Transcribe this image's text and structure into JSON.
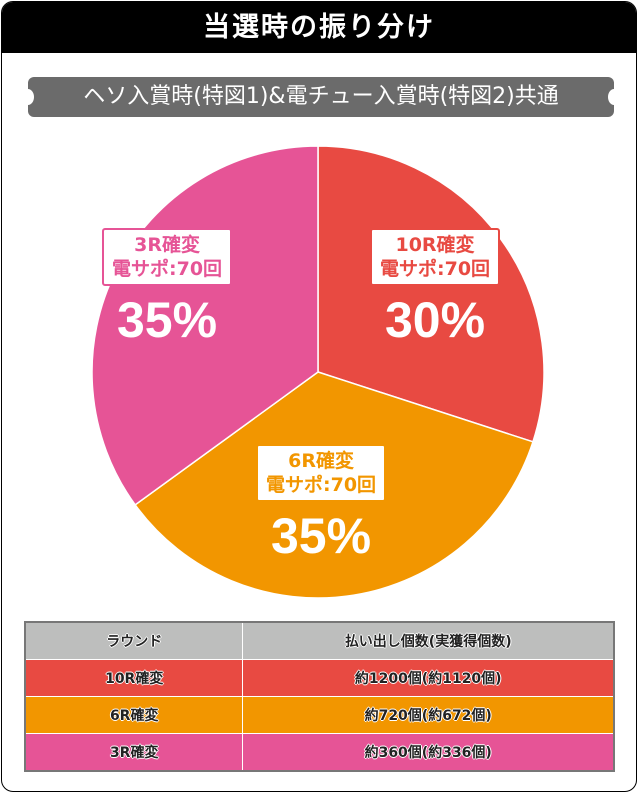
{
  "header": {
    "title": "当選時の振り分け"
  },
  "subtitle": "ヘソ入賞時(特図1)&電チュー入賞時(特図2)共通",
  "chart_data": {
    "type": "pie",
    "start": "top",
    "direction": "clockwise",
    "slices": [
      {
        "label": "10R確変",
        "sub": "電サポ:70回",
        "value": 30,
        "pct_label": "30%",
        "color": "#e84a42"
      },
      {
        "label": "6R確変",
        "sub": "電サポ:70回",
        "value": 35,
        "pct_label": "35%",
        "color": "#f29600"
      },
      {
        "label": "3R確変",
        "sub": "電サポ:70回",
        "value": 35,
        "pct_label": "35%",
        "color": "#e65496"
      }
    ]
  },
  "table": {
    "headers": [
      "ラウンド",
      "払い出し個数(実獲得個数)"
    ],
    "header_color": "#bdbebd",
    "rows": [
      {
        "round": "10R確変",
        "payout": "約1200個(約1120個)",
        "color": "#e84a42"
      },
      {
        "round": "6R確変",
        "payout": "約720個(約672個)",
        "color": "#f29600"
      },
      {
        "round": "3R確変",
        "payout": "約360個(約336個)",
        "color": "#e65496"
      }
    ]
  }
}
